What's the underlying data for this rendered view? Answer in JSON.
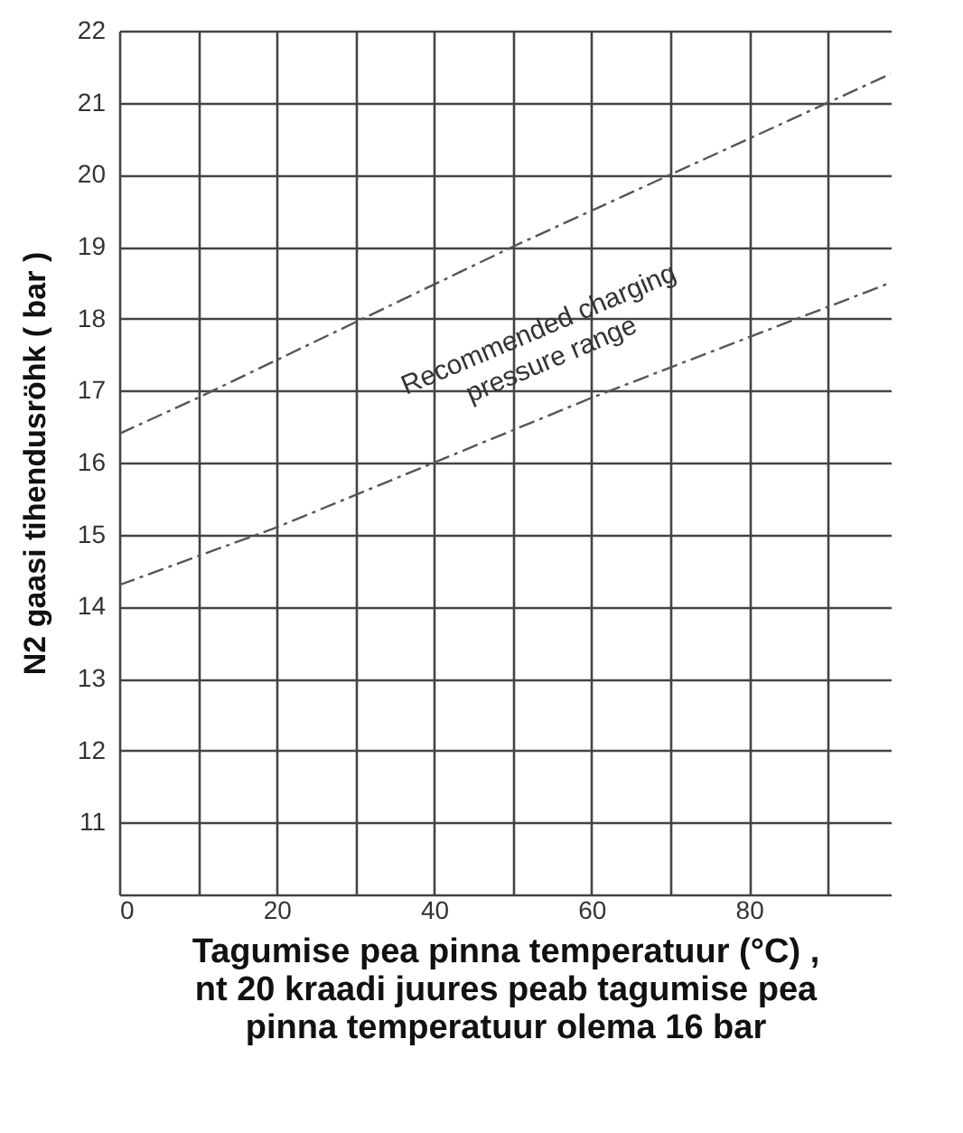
{
  "chart_data": {
    "type": "line",
    "xlabel": "Tagumise pea pinna temperatuur (°C) , nt 20 kraadi juures peab tagumise pea pinna temperatuur olema 16 bar",
    "ylabel": "N2 gaasi tihendusröhk     ( bar )",
    "xlim": [
      0,
      98
    ],
    "ylim": [
      10,
      22
    ],
    "xticks": [
      0,
      {
        "value": 10,
        "label": null
      },
      20,
      {
        "value": 30,
        "label": null
      },
      40,
      {
        "value": 50,
        "label": null
      },
      60,
      {
        "value": 70,
        "label": null
      },
      80,
      {
        "value": 90,
        "label": null
      }
    ],
    "yticks": [
      {
        "value": 10,
        "label": null
      },
      11,
      12,
      13,
      14,
      15,
      16,
      17,
      18,
      19,
      20,
      21,
      22
    ],
    "grid": true,
    "line_style": "dashed",
    "marker": "none",
    "series": [
      {
        "color": "#555555",
        "x": [
          0,
          10,
          50,
          90,
          98
        ],
        "values": [
          16.4,
          16.9,
          19.0,
          21.0,
          21.4
        ]
      },
      {
        "color": "#555555",
        "x": [
          0,
          20,
          40,
          60,
          98
        ],
        "values": [
          14.3,
          15.1,
          16.0,
          16.9,
          18.5
        ]
      }
    ],
    "annotations": [
      "Recommended charging pressure range"
    ]
  }
}
